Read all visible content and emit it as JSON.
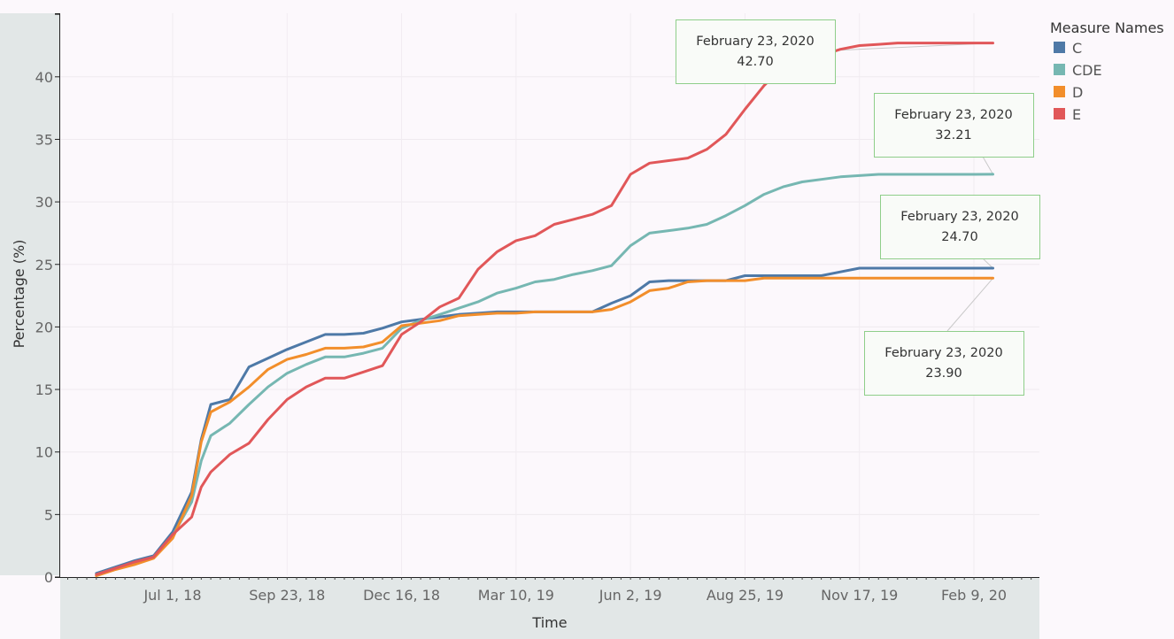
{
  "chart_data": {
    "type": "line",
    "title": "",
    "xlabel": "Time",
    "ylabel": "Percentage (%)",
    "x": [
      "2018-05-06",
      "2018-05-20",
      "2018-06-03",
      "2018-06-17",
      "2018-07-01",
      "2018-07-15",
      "2018-07-22",
      "2018-07-29",
      "2018-08-12",
      "2018-08-26",
      "2018-09-09",
      "2018-09-23",
      "2018-10-07",
      "2018-10-21",
      "2018-11-04",
      "2018-11-18",
      "2018-12-02",
      "2018-12-16",
      "2018-12-30",
      "2019-01-13",
      "2019-01-27",
      "2019-02-10",
      "2019-02-24",
      "2019-03-10",
      "2019-03-24",
      "2019-04-07",
      "2019-04-21",
      "2019-05-05",
      "2019-05-19",
      "2019-06-02",
      "2019-06-16",
      "2019-06-30",
      "2019-07-14",
      "2019-07-28",
      "2019-08-11",
      "2019-08-25",
      "2019-09-08",
      "2019-09-22",
      "2019-10-06",
      "2019-10-20",
      "2019-11-03",
      "2019-11-17",
      "2019-12-01",
      "2019-12-15",
      "2019-12-29",
      "2020-01-12",
      "2020-01-26",
      "2020-02-09",
      "2020-02-23"
    ],
    "series": [
      {
        "name": "C",
        "color": "#4e79a7",
        "values": [
          0.3,
          0.8,
          1.3,
          1.7,
          3.6,
          6.8,
          11.0,
          13.8,
          14.2,
          16.8,
          17.5,
          18.2,
          18.8,
          19.4,
          19.4,
          19.5,
          19.9,
          20.4,
          20.6,
          20.8,
          21.0,
          21.1,
          21.2,
          21.2,
          21.2,
          21.2,
          21.2,
          21.2,
          21.9,
          22.5,
          23.6,
          23.7,
          23.7,
          23.7,
          23.7,
          24.1,
          24.1,
          24.1,
          24.1,
          24.1,
          24.4,
          24.7,
          24.7,
          24.7,
          24.7,
          24.7,
          24.7,
          24.7,
          24.7
        ]
      },
      {
        "name": "CDE",
        "color": "#76b7b2",
        "values": [
          0.2,
          0.7,
          1.1,
          1.6,
          3.3,
          6.0,
          9.3,
          11.3,
          12.3,
          13.8,
          15.2,
          16.3,
          17.0,
          17.6,
          17.6,
          17.9,
          18.3,
          19.9,
          20.5,
          21.0,
          21.5,
          22.0,
          22.7,
          23.1,
          23.6,
          23.8,
          24.2,
          24.5,
          24.9,
          26.5,
          27.5,
          27.7,
          27.9,
          28.2,
          28.9,
          29.7,
          30.6,
          31.2,
          31.6,
          31.8,
          32.0,
          32.1,
          32.2,
          32.2,
          32.2,
          32.2,
          32.2,
          32.2,
          32.21
        ]
      },
      {
        "name": "D",
        "color": "#f28e2b",
        "values": [
          0.1,
          0.6,
          1.0,
          1.5,
          3.1,
          6.5,
          10.8,
          13.2,
          14.0,
          15.2,
          16.6,
          17.4,
          17.8,
          18.3,
          18.3,
          18.4,
          18.8,
          20.1,
          20.3,
          20.5,
          20.9,
          21.0,
          21.1,
          21.1,
          21.2,
          21.2,
          21.2,
          21.2,
          21.4,
          22.0,
          22.9,
          23.1,
          23.6,
          23.7,
          23.7,
          23.7,
          23.9,
          23.9,
          23.9,
          23.9,
          23.9,
          23.9,
          23.9,
          23.9,
          23.9,
          23.9,
          23.9,
          23.9,
          23.9
        ]
      },
      {
        "name": "E",
        "color": "#e15759",
        "values": [
          0.2,
          0.7,
          1.2,
          1.6,
          3.4,
          4.8,
          7.2,
          8.4,
          9.8,
          10.7,
          12.6,
          14.2,
          15.2,
          15.9,
          15.9,
          16.4,
          16.9,
          19.4,
          20.4,
          21.6,
          22.3,
          24.6,
          26.0,
          26.9,
          27.3,
          28.2,
          28.6,
          29.0,
          29.7,
          32.2,
          33.1,
          33.3,
          33.5,
          34.2,
          35.4,
          37.4,
          39.3,
          40.8,
          41.3,
          41.7,
          42.2,
          42.5,
          42.6,
          42.7,
          42.7,
          42.7,
          42.7,
          42.7,
          42.7
        ]
      }
    ],
    "ylim": [
      0,
      45
    ],
    "yticks": [
      0,
      5,
      10,
      15,
      20,
      25,
      30,
      35,
      40
    ],
    "xticks": [
      "2018-07-01",
      "2018-09-23",
      "2018-12-16",
      "2019-03-10",
      "2019-06-02",
      "2019-08-25",
      "2019-11-17",
      "2020-02-09"
    ],
    "xtick_labels": [
      "Jul 1, 18",
      "Sep 23, 18",
      "Dec 16, 18",
      "Mar 10, 19",
      "Jun 2, 19",
      "Aug 25, 19",
      "Nov 17, 19",
      "Feb 9, 20"
    ],
    "legend": {
      "title": "Measure Names",
      "placement": "top-right",
      "items": [
        "C",
        "CDE",
        "D",
        "E"
      ]
    },
    "annotations": [
      {
        "series": "E",
        "date": "February 23, 2020",
        "value": "42.70"
      },
      {
        "series": "CDE",
        "date": "February 23, 2020",
        "value": "32.21"
      },
      {
        "series": "C",
        "date": "February 23, 2020",
        "value": "24.70"
      },
      {
        "series": "D",
        "date": "February 23, 2020",
        "value": "23.90"
      }
    ],
    "grid": true
  }
}
